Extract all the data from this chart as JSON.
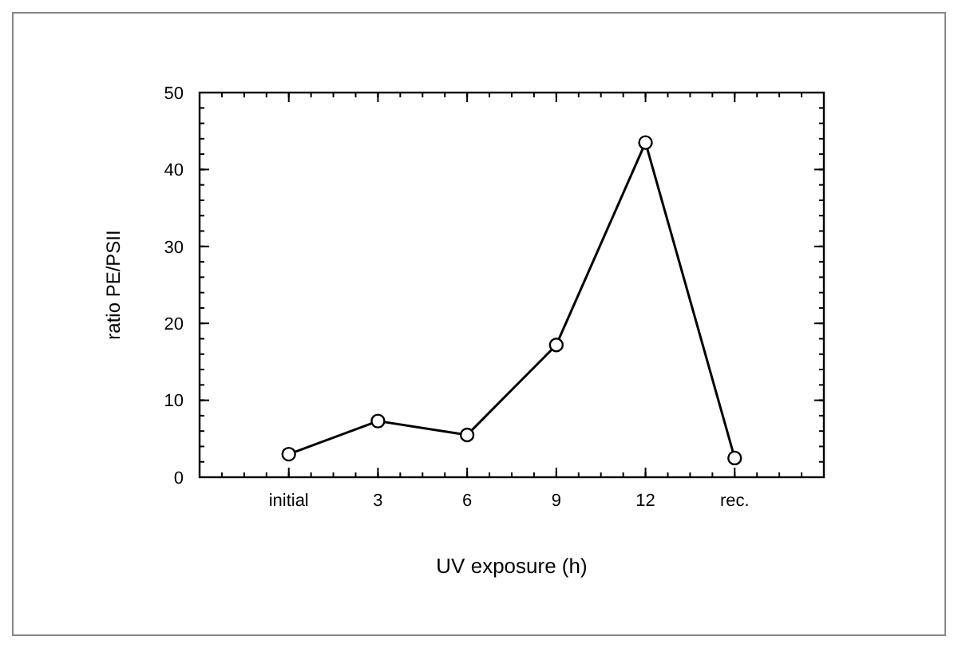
{
  "chart_data": {
    "type": "line",
    "xlabel": "UV exposure (h)",
    "ylabel": "ratio PE/PSII",
    "categories": [
      "initial",
      "3",
      "6",
      "9",
      "12",
      "rec."
    ],
    "series": [
      {
        "color": "#000000",
        "values": [
          3.0,
          7.3,
          5.5,
          17.2,
          43.5,
          2.5
        ]
      }
    ],
    "ylim": [
      0,
      50
    ],
    "yticks": [
      0,
      10,
      20,
      30,
      40,
      50
    ],
    "marker": "circle",
    "line_style": "solid"
  }
}
